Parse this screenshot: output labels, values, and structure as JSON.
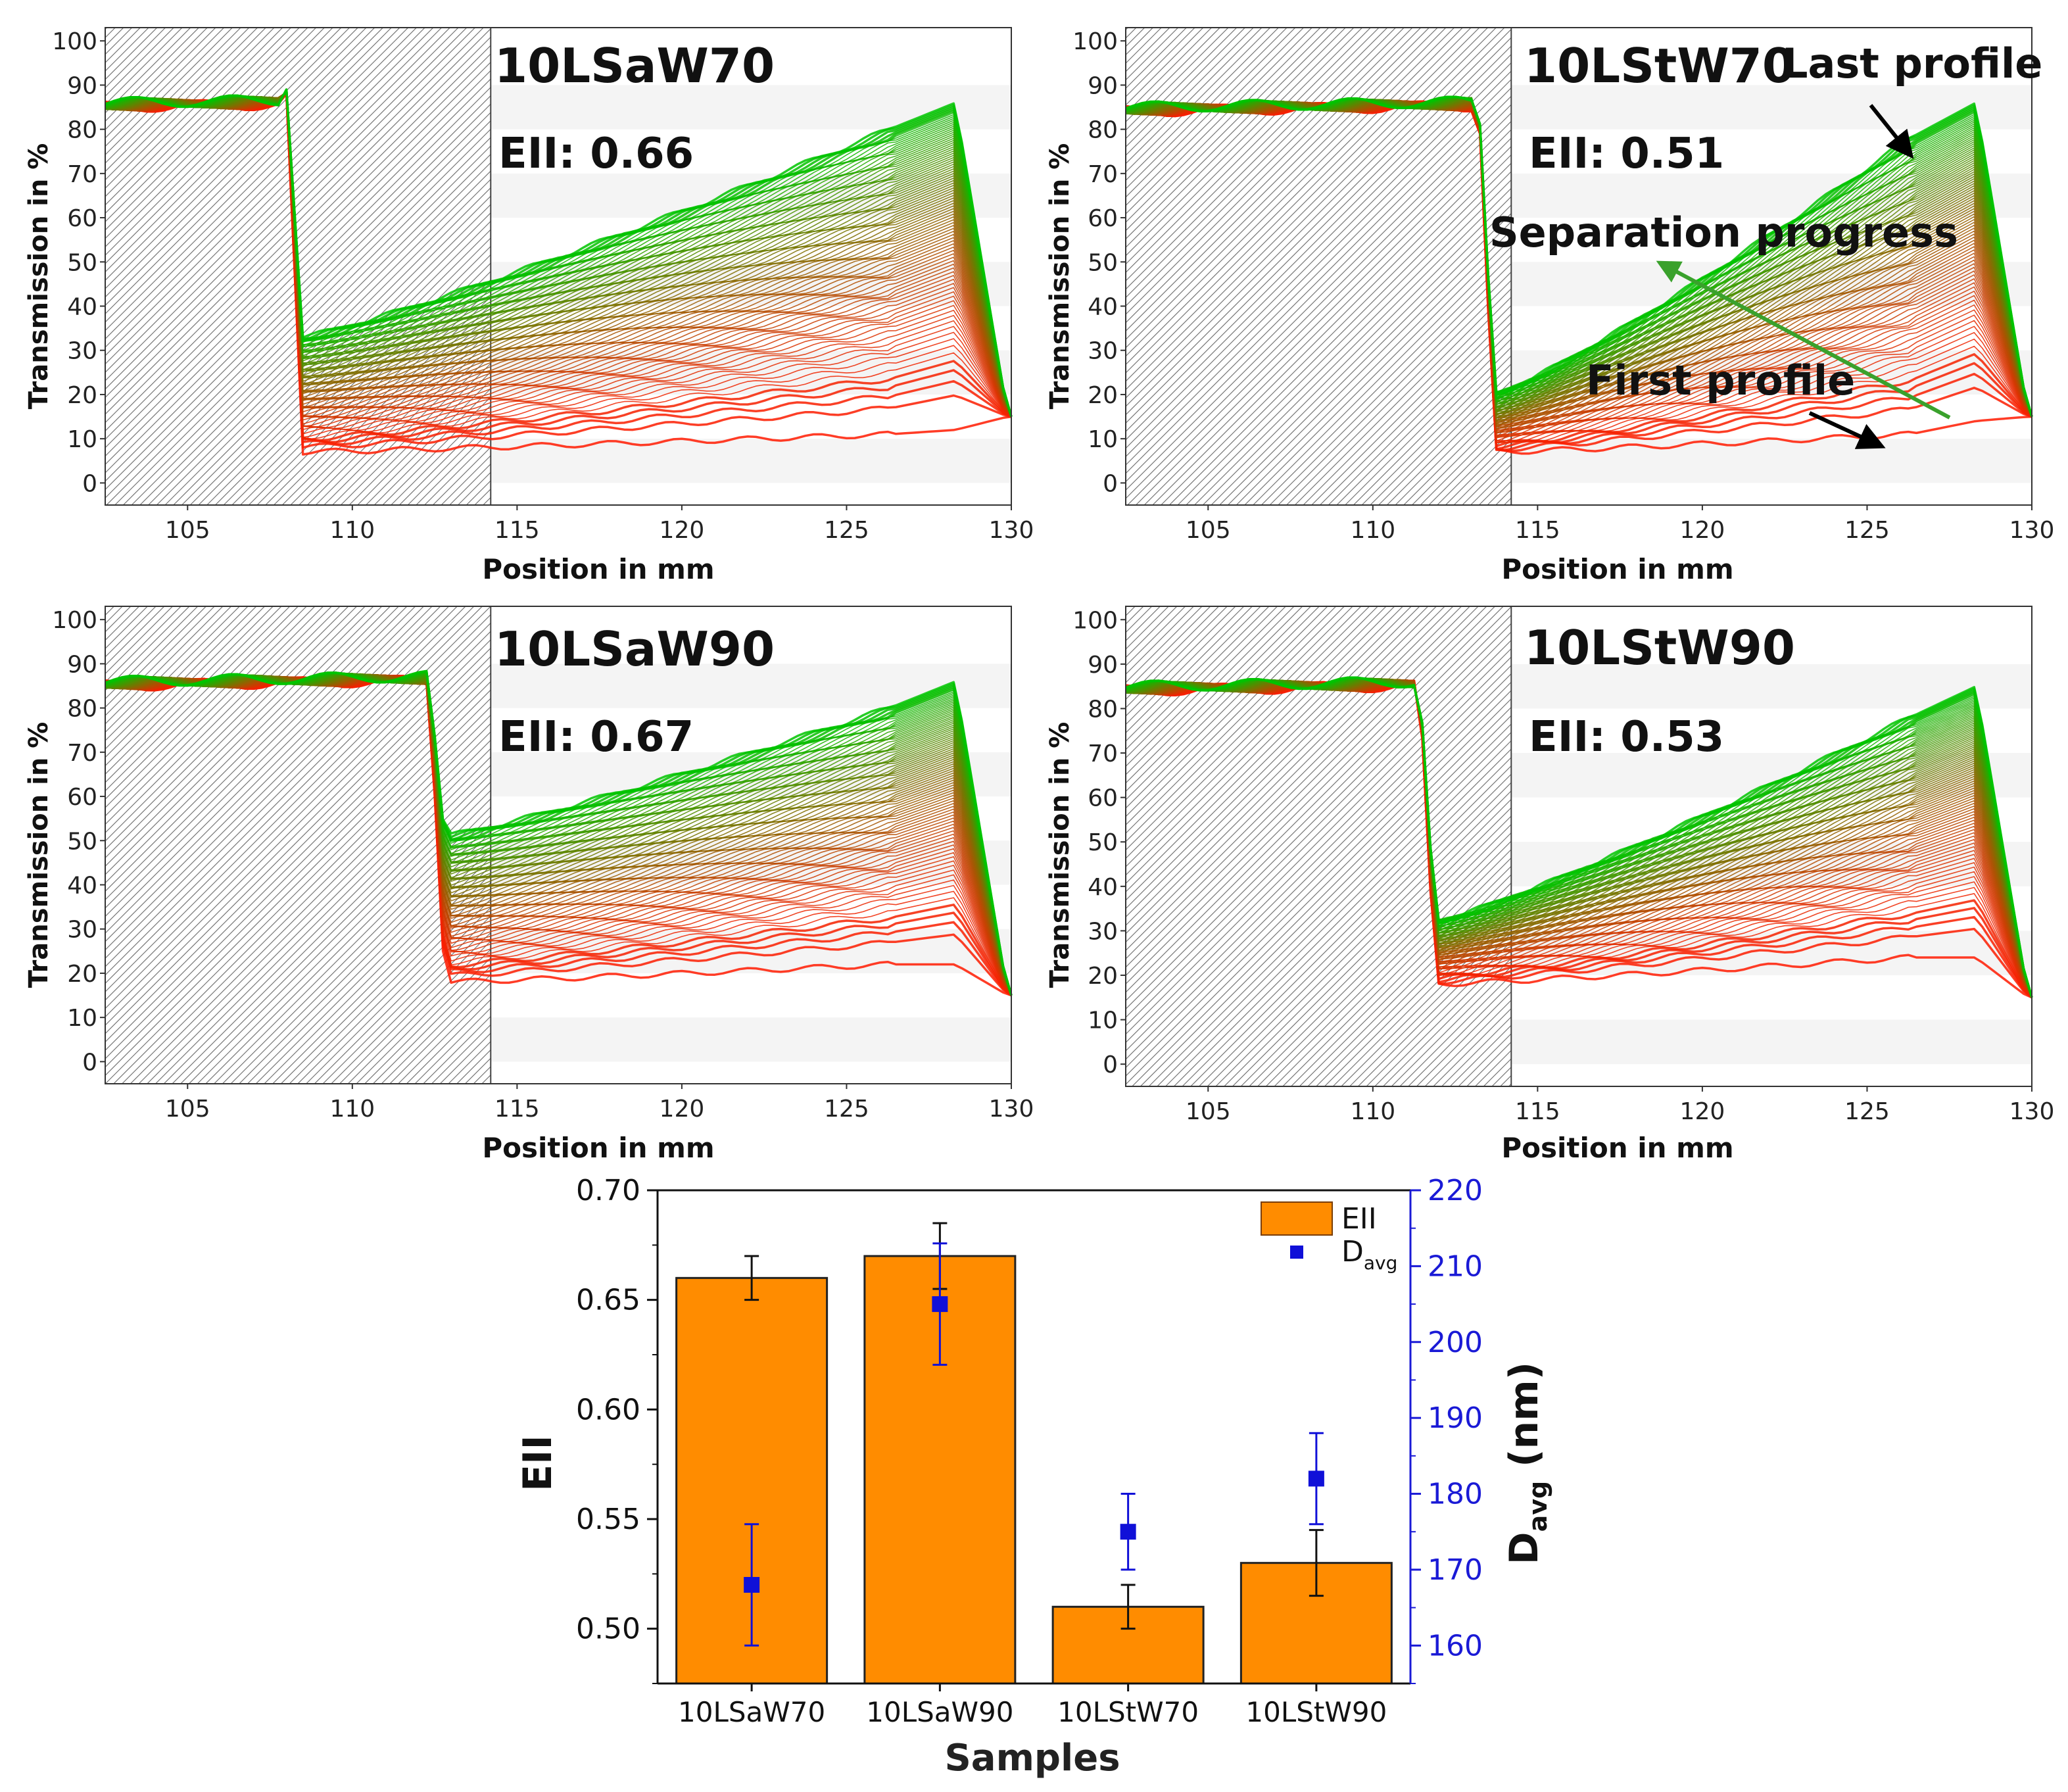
{
  "colors": {
    "first_profile": "#ff1a00",
    "last_profile": "#00c400",
    "bar_fill": "#ff8c00",
    "d_avg_marker": "#1010d8",
    "right_axis": "#1a1ad6"
  },
  "chart_data": [
    {
      "type": "line",
      "panel": "top-left",
      "title": "10LSaW70",
      "eii_label": "EII: 0.66",
      "xlabel": "Position in mm",
      "ylabel": "Transmission in %",
      "xlim": [
        102.5,
        130
      ],
      "ylim": [
        -5,
        103
      ],
      "xticks": [
        105,
        110,
        115,
        120,
        125,
        130
      ],
      "yticks": [
        0,
        10,
        20,
        30,
        40,
        50,
        60,
        70,
        80,
        90,
        100
      ],
      "masked_region_mm": [
        102.5,
        114.2
      ],
      "meniscus_mm": 108,
      "cell_bottom_mm": 128.3,
      "first_profile": {
        "top_level": 87,
        "start": 7,
        "end": 11,
        "peak": 12
      },
      "last_profile": {
        "top_level": 88,
        "start": 33,
        "end": 80,
        "peak": 86
      }
    },
    {
      "type": "line",
      "panel": "top-right",
      "title": "10LStW70",
      "eii_label": "EII: 0.51",
      "xlabel": "Position in mm",
      "ylabel": "Transmission in %",
      "xlim": [
        102.5,
        130
      ],
      "ylim": [
        -5,
        103
      ],
      "xticks": [
        105,
        110,
        115,
        120,
        125,
        130
      ],
      "yticks": [
        0,
        10,
        20,
        30,
        40,
        50,
        60,
        70,
        80,
        90,
        100
      ],
      "masked_region_mm": [
        102.5,
        114.2
      ],
      "meniscus_mm": 113.2,
      "cell_bottom_mm": 128.3,
      "first_profile": {
        "top_level": 86,
        "start": 7,
        "end": 11,
        "peak": 14
      },
      "last_profile": {
        "top_level": 87,
        "start": 20,
        "end": 78,
        "peak": 86
      },
      "annotations": [
        "Last profile",
        "Separation progress",
        "First profile"
      ]
    },
    {
      "type": "line",
      "panel": "middle-left",
      "title": "10LSaW90",
      "eii_label": "EII: 0.67",
      "xlabel": "Position in mm",
      "ylabel": "Transmission in %",
      "xlim": [
        102.5,
        130
      ],
      "ylim": [
        -5,
        103
      ],
      "xticks": [
        105,
        110,
        115,
        120,
        125,
        130
      ],
      "yticks": [
        0,
        10,
        20,
        30,
        40,
        50,
        60,
        70,
        80,
        90,
        100
      ],
      "masked_region_mm": [
        102.5,
        114.2
      ],
      "meniscus_mm": 112.3,
      "cell_bottom_mm": 128.3,
      "first_profile": {
        "top_level": 87,
        "start": 18,
        "end": 22,
        "peak": 22
      },
      "last_profile": {
        "top_level": 88,
        "start": 51,
        "end": 80,
        "peak": 86
      }
    },
    {
      "type": "line",
      "panel": "middle-right",
      "title": "10LStW90",
      "eii_label": "EII: 0.53",
      "xlabel": "Position in mm",
      "ylabel": "Transmission in %",
      "xlim": [
        102.5,
        130
      ],
      "ylim": [
        -5,
        103
      ],
      "xticks": [
        105,
        110,
        115,
        120,
        125,
        130
      ],
      "yticks": [
        0,
        10,
        20,
        30,
        40,
        50,
        60,
        70,
        80,
        90,
        100
      ],
      "masked_region_mm": [
        102.5,
        114.2
      ],
      "meniscus_mm": 111.4,
      "cell_bottom_mm": 128.3,
      "first_profile": {
        "top_level": 86,
        "start": 18,
        "end": 24,
        "peak": 24
      },
      "last_profile": {
        "top_level": 87,
        "start": 32,
        "end": 78,
        "peak": 85
      }
    },
    {
      "type": "bar",
      "panel": "bottom",
      "categories": [
        "10LSaW70",
        "10LSaW90",
        "10LStW70",
        "10LStW90"
      ],
      "xlabel": "Samples",
      "ylabel": "EII",
      "y2label": "D",
      "y2label_sub": "avg",
      "y2label_unit": " (nm)",
      "ylim": [
        0.475,
        0.7
      ],
      "yticks": [
        "0.50",
        "0.55",
        "0.60",
        "0.65",
        "0.70"
      ],
      "y2lim": [
        155,
        220
      ],
      "y2ticks": [
        160,
        170,
        180,
        190,
        200,
        210,
        220
      ],
      "series": [
        {
          "name": "EII",
          "kind": "bar",
          "axis": "left",
          "values": [
            0.66,
            0.67,
            0.51,
            0.53
          ],
          "errors": [
            0.01,
            0.015,
            0.01,
            0.015
          ]
        },
        {
          "name": "D",
          "name_sub": "avg",
          "kind": "marker",
          "axis": "right",
          "values": [
            168,
            205,
            175,
            182
          ],
          "errors": [
            8,
            8,
            5,
            6
          ]
        }
      ],
      "legend": {
        "position": "top-right",
        "labels": [
          "EII",
          "D"
        ],
        "sub": "avg"
      }
    }
  ]
}
